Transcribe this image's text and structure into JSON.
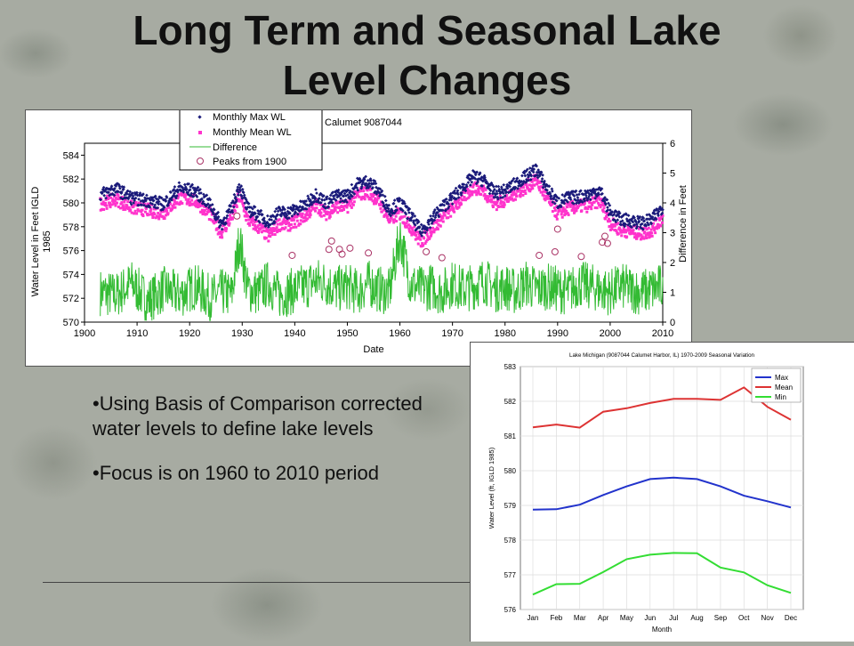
{
  "slide": {
    "title_line1": "Long Term and Seasonal Lake",
    "title_line2": "Level Changes",
    "bullet1": "•Using Basis of Comparison corrected water levels to define lake levels",
    "bullet2": "•Focus is on 1960 to 2010 period"
  },
  "chart_data": [
    {
      "type": "scatter",
      "annotation": "Calumet 9087044",
      "xlabel": "Date",
      "ylabel": "Water Level in Feet IGLD 1985",
      "y2label": "Difference in Feet",
      "xlim": [
        1900,
        2010
      ],
      "ylim": [
        570,
        585
      ],
      "y2lim": [
        0,
        6
      ],
      "xticks": [
        "1900",
        "1910",
        "1920",
        "1930",
        "1940",
        "1950",
        "1960",
        "1970",
        "1980",
        "1990",
        "2000",
        "2010"
      ],
      "yticks": [
        "570",
        "572",
        "574",
        "576",
        "578",
        "580",
        "582",
        "584"
      ],
      "y2ticks": [
        "0",
        "1",
        "2",
        "3",
        "4",
        "5",
        "6"
      ],
      "legend_position": "top-left",
      "legend": [
        "Monthly Max WL",
        "Monthly Mean WL",
        "Difference",
        "Peaks from 1900"
      ],
      "colors": {
        "max": "#1a1a7a",
        "mean": "#ff33cc",
        "difference": "#33bb33",
        "peaks": "#aa3366"
      },
      "series": [
        {
          "name": "Monthly Max WL",
          "x": [
            1903,
            1906,
            1909,
            1912,
            1915,
            1918,
            1921,
            1924,
            1926,
            1928,
            1929.5,
            1931,
            1933,
            1935,
            1937,
            1939,
            1942,
            1944,
            1946,
            1948,
            1950,
            1952,
            1954,
            1956,
            1958,
            1960,
            1962,
            1964,
            1966,
            1968,
            1970,
            1972,
            1974,
            1976,
            1978,
            1980,
            1982,
            1984,
            1986,
            1988,
            1990,
            1992,
            1994,
            1996,
            1998,
            2000,
            2002,
            2004,
            2006,
            2008,
            2010
          ],
          "y": [
            580.7,
            581.2,
            580.4,
            580.2,
            579.9,
            581.2,
            581.0,
            579.8,
            578.2,
            579.5,
            581.5,
            579.5,
            579.0,
            578.4,
            579.2,
            579.2,
            579.8,
            580.7,
            580.0,
            580.6,
            580.6,
            581.6,
            581.8,
            581.0,
            579.4,
            580.0,
            578.9,
            577.6,
            578.6,
            579.6,
            580.4,
            581.3,
            582.2,
            581.9,
            580.8,
            581.0,
            581.6,
            582.2,
            582.8,
            581.2,
            580.0,
            580.4,
            580.5,
            580.7,
            581.1,
            579.2,
            578.6,
            578.5,
            578.3,
            578.6,
            579.7
          ]
        },
        {
          "name": "Monthly Mean WL",
          "x": [
            1903,
            1906,
            1909,
            1912,
            1915,
            1918,
            1921,
            1924,
            1926,
            1928,
            1929.5,
            1931,
            1933,
            1935,
            1937,
            1939,
            1942,
            1944,
            1946,
            1948,
            1950,
            1952,
            1954,
            1956,
            1958,
            1960,
            1962,
            1964,
            1966,
            1968,
            1970,
            1972,
            1974,
            1976,
            1978,
            1980,
            1982,
            1984,
            1986,
            1988,
            1990,
            1992,
            1994,
            1996,
            1998,
            2000,
            2002,
            2004,
            2006,
            2008,
            2010
          ],
          "y": [
            579.9,
            580.3,
            579.6,
            579.4,
            579.1,
            580.4,
            580.2,
            579.0,
            577.5,
            578.8,
            580.6,
            578.6,
            578.0,
            577.2,
            578.2,
            578.2,
            578.9,
            579.8,
            579.1,
            579.7,
            579.7,
            580.7,
            580.9,
            580.1,
            578.6,
            579.1,
            578.0,
            576.7,
            577.7,
            578.7,
            579.5,
            580.4,
            581.3,
            581.0,
            579.9,
            580.2,
            580.8,
            581.3,
            581.9,
            580.3,
            579.1,
            579.5,
            579.7,
            579.8,
            580.2,
            578.3,
            577.7,
            577.6,
            577.4,
            577.7,
            578.8
          ]
        },
        {
          "name": "Difference",
          "x": [
            1903,
            1906,
            1909,
            1912,
            1915,
            1918,
            1921,
            1924,
            1926,
            1928,
            1929.5,
            1931,
            1933,
            1935,
            1937,
            1939,
            1942,
            1944,
            1946,
            1948,
            1950,
            1952,
            1954,
            1956,
            1958,
            1960,
            1962,
            1964,
            1966,
            1968,
            1970,
            1972,
            1974,
            1976,
            1978,
            1980,
            1982,
            1984,
            1986,
            1988,
            1990,
            1992,
            1994,
            1996,
            1998,
            2000,
            2002,
            2004,
            2006,
            2008,
            2010
          ],
          "y": [
            1.0,
            0.9,
            1.3,
            0.7,
            1.1,
            0.9,
            1.2,
            0.8,
            1.0,
            0.9,
            2.8,
            1.1,
            1.0,
            1.3,
            0.9,
            1.0,
            1.2,
            1.4,
            1.3,
            1.1,
            1.2,
            1.0,
            1.3,
            1.1,
            1.0,
            2.9,
            1.3,
            1.1,
            1.2,
            1.0,
            1.3,
            1.1,
            1.2,
            1.4,
            1.1,
            1.2,
            1.0,
            1.3,
            1.1,
            1.2,
            1.1,
            1.0,
            1.3,
            1.2,
            1.1,
            1.0,
            1.2,
            1.1,
            1.0,
            1.1,
            1.2
          ]
        },
        {
          "name": "Peaks from 1900",
          "x": [
            1929,
            1939.5,
            1946.5,
            1947,
            1948.5,
            1949,
            1950.5,
            1954,
            1965,
            1968,
            1986.5,
            1989.5,
            1990,
            1994.5,
            1998.5,
            1999,
            1999.5
          ],
          "y": [
            578.9,
            575.6,
            576.1,
            576.8,
            576.1,
            575.7,
            576.2,
            575.8,
            575.9,
            575.4,
            575.6,
            575.9,
            577.8,
            575.5,
            576.7,
            577.2,
            576.6
          ]
        }
      ]
    },
    {
      "type": "line",
      "title": "Lake Michigan (9087044 Calumet Harbor, IL) 1970-2009 Seasonal Variation",
      "xlabel": "Month",
      "ylabel": "Water Level (ft, IGLD 1985)",
      "ylim": [
        576,
        583
      ],
      "yticks": [
        "576",
        "577",
        "578",
        "579",
        "580",
        "581",
        "582",
        "583"
      ],
      "categories": [
        "Jan",
        "Feb",
        "Mar",
        "Apr",
        "May",
        "Jun",
        "Jul",
        "Aug",
        "Sep",
        "Oct",
        "Nov",
        "Dec"
      ],
      "legend_position": "top-right",
      "series": [
        {
          "name": "Max",
          "color": "#2233cc",
          "values": [
            578.88,
            578.89,
            579.02,
            579.3,
            579.55,
            579.76,
            579.8,
            579.76,
            579.55,
            579.28,
            579.12,
            578.94
          ]
        },
        {
          "name": "Mean",
          "color": "#dd3333",
          "values": [
            581.25,
            581.33,
            581.24,
            581.7,
            581.8,
            581.95,
            582.07,
            582.07,
            582.04,
            582.4,
            581.84,
            581.47
          ]
        },
        {
          "name": "Min",
          "color": "#33dd33",
          "values": [
            576.43,
            576.73,
            576.74,
            577.08,
            577.45,
            577.58,
            577.63,
            577.62,
            577.21,
            577.07,
            576.7,
            576.48
          ]
        }
      ]
    }
  ]
}
